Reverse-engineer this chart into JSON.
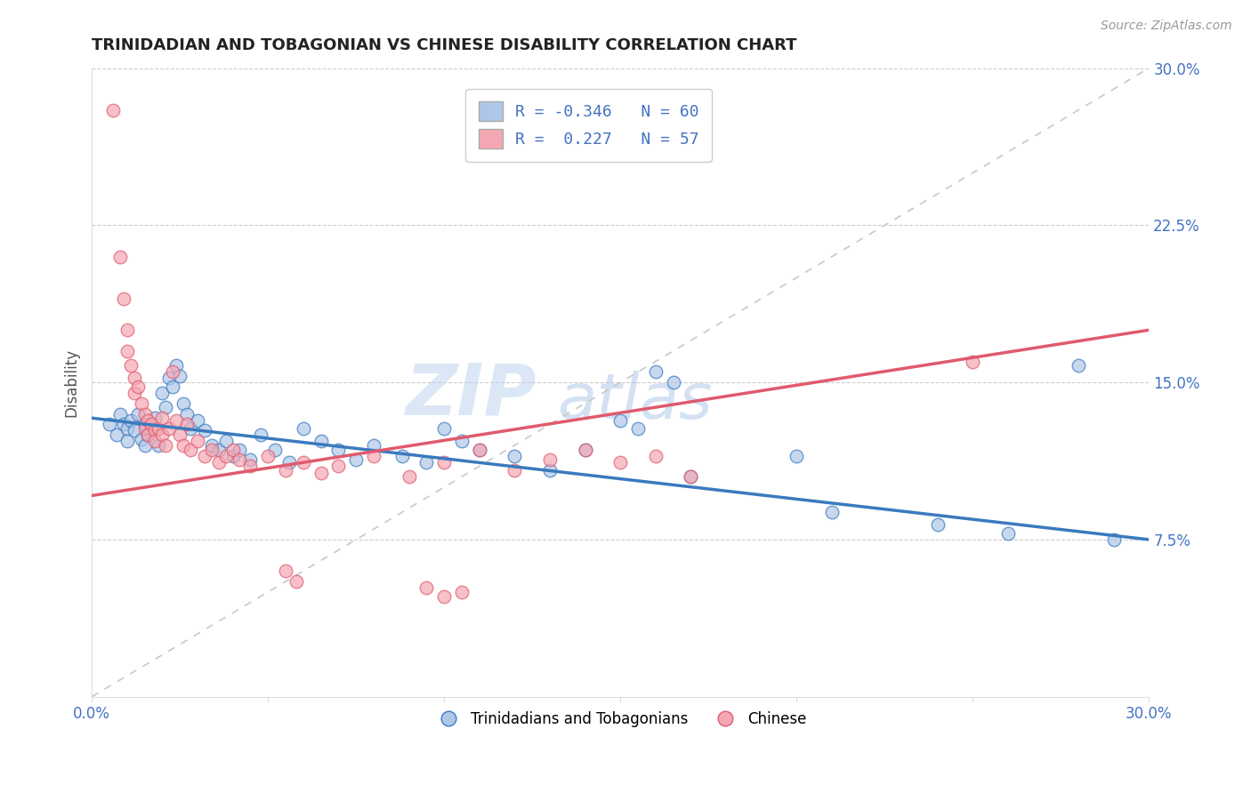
{
  "title": "TRINIDADIAN AND TOBAGONIAN VS CHINESE DISABILITY CORRELATION CHART",
  "source": "Source: ZipAtlas.com",
  "ylabel": "Disability",
  "xmin": 0.0,
  "xmax": 0.3,
  "ymin": 0.0,
  "ymax": 0.3,
  "ytick_labels_right": [
    "30.0%",
    "22.5%",
    "15.0%",
    "7.5%"
  ],
  "ytick_vals_right": [
    0.3,
    0.225,
    0.15,
    0.075
  ],
  "r_blue": -0.346,
  "n_blue": 60,
  "r_pink": 0.227,
  "n_pink": 57,
  "blue_color": "#aec6e8",
  "pink_color": "#f4a7b2",
  "blue_line_color": "#3a7abf",
  "pink_line_color": "#e05a6e",
  "trendline_dashed_color": "#c8c8c8",
  "legend_label_blue": "Trinidadians and Tobagonians",
  "legend_label_pink": "Chinese",
  "watermark": "ZIPatlas",
  "title_color": "#222222",
  "axis_color": "#4472c4",
  "background_color": "#ffffff",
  "blue_scatter": [
    [
      0.005,
      0.13
    ],
    [
      0.007,
      0.125
    ],
    [
      0.008,
      0.135
    ],
    [
      0.009,
      0.13
    ],
    [
      0.01,
      0.128
    ],
    [
      0.01,
      0.122
    ],
    [
      0.011,
      0.132
    ],
    [
      0.012,
      0.127
    ],
    [
      0.013,
      0.135
    ],
    [
      0.014,
      0.123
    ],
    [
      0.015,
      0.13
    ],
    [
      0.015,
      0.12
    ],
    [
      0.016,
      0.125
    ],
    [
      0.017,
      0.128
    ],
    [
      0.018,
      0.133
    ],
    [
      0.019,
      0.12
    ],
    [
      0.02,
      0.145
    ],
    [
      0.021,
      0.138
    ],
    [
      0.022,
      0.152
    ],
    [
      0.023,
      0.148
    ],
    [
      0.024,
      0.158
    ],
    [
      0.025,
      0.153
    ],
    [
      0.026,
      0.14
    ],
    [
      0.027,
      0.135
    ],
    [
      0.028,
      0.128
    ],
    [
      0.03,
      0.132
    ],
    [
      0.032,
      0.127
    ],
    [
      0.034,
      0.12
    ],
    [
      0.036,
      0.118
    ],
    [
      0.038,
      0.122
    ],
    [
      0.04,
      0.115
    ],
    [
      0.042,
      0.118
    ],
    [
      0.045,
      0.113
    ],
    [
      0.048,
      0.125
    ],
    [
      0.052,
      0.118
    ],
    [
      0.056,
      0.112
    ],
    [
      0.06,
      0.128
    ],
    [
      0.065,
      0.122
    ],
    [
      0.07,
      0.118
    ],
    [
      0.075,
      0.113
    ],
    [
      0.08,
      0.12
    ],
    [
      0.088,
      0.115
    ],
    [
      0.095,
      0.112
    ],
    [
      0.1,
      0.128
    ],
    [
      0.105,
      0.122
    ],
    [
      0.11,
      0.118
    ],
    [
      0.12,
      0.115
    ],
    [
      0.13,
      0.108
    ],
    [
      0.14,
      0.118
    ],
    [
      0.15,
      0.132
    ],
    [
      0.155,
      0.128
    ],
    [
      0.16,
      0.155
    ],
    [
      0.165,
      0.15
    ],
    [
      0.17,
      0.105
    ],
    [
      0.2,
      0.115
    ],
    [
      0.21,
      0.088
    ],
    [
      0.24,
      0.082
    ],
    [
      0.26,
      0.078
    ],
    [
      0.28,
      0.158
    ],
    [
      0.29,
      0.075
    ]
  ],
  "pink_scatter": [
    [
      0.006,
      0.28
    ],
    [
      0.008,
      0.21
    ],
    [
      0.009,
      0.19
    ],
    [
      0.01,
      0.175
    ],
    [
      0.01,
      0.165
    ],
    [
      0.011,
      0.158
    ],
    [
      0.012,
      0.152
    ],
    [
      0.012,
      0.145
    ],
    [
      0.013,
      0.148
    ],
    [
      0.014,
      0.14
    ],
    [
      0.015,
      0.135
    ],
    [
      0.015,
      0.128
    ],
    [
      0.016,
      0.132
    ],
    [
      0.016,
      0.125
    ],
    [
      0.017,
      0.13
    ],
    [
      0.018,
      0.127
    ],
    [
      0.018,
      0.122
    ],
    [
      0.019,
      0.128
    ],
    [
      0.02,
      0.133
    ],
    [
      0.02,
      0.125
    ],
    [
      0.021,
      0.12
    ],
    [
      0.022,
      0.128
    ],
    [
      0.023,
      0.155
    ],
    [
      0.024,
      0.132
    ],
    [
      0.025,
      0.125
    ],
    [
      0.026,
      0.12
    ],
    [
      0.027,
      0.13
    ],
    [
      0.028,
      0.118
    ],
    [
      0.03,
      0.122
    ],
    [
      0.032,
      0.115
    ],
    [
      0.034,
      0.118
    ],
    [
      0.036,
      0.112
    ],
    [
      0.038,
      0.115
    ],
    [
      0.04,
      0.118
    ],
    [
      0.042,
      0.113
    ],
    [
      0.045,
      0.11
    ],
    [
      0.05,
      0.115
    ],
    [
      0.055,
      0.108
    ],
    [
      0.06,
      0.112
    ],
    [
      0.065,
      0.107
    ],
    [
      0.07,
      0.11
    ],
    [
      0.08,
      0.115
    ],
    [
      0.09,
      0.105
    ],
    [
      0.1,
      0.112
    ],
    [
      0.11,
      0.118
    ],
    [
      0.12,
      0.108
    ],
    [
      0.13,
      0.113
    ],
    [
      0.14,
      0.118
    ],
    [
      0.15,
      0.112
    ],
    [
      0.16,
      0.115
    ],
    [
      0.17,
      0.105
    ],
    [
      0.055,
      0.06
    ],
    [
      0.058,
      0.055
    ],
    [
      0.095,
      0.052
    ],
    [
      0.1,
      0.048
    ],
    [
      0.105,
      0.05
    ],
    [
      0.25,
      0.16
    ]
  ]
}
